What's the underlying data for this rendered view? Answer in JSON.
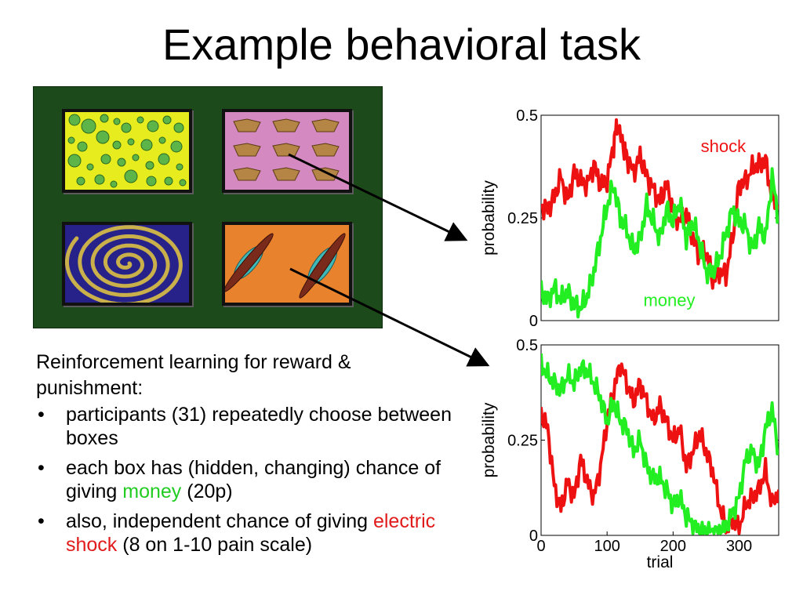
{
  "slide": {
    "title": "Example behavioral task"
  },
  "text": {
    "intro": "Reinforcement learning for reward & punishment:",
    "bullets": [
      {
        "pre": "participants (31) repeatedly choose between boxes",
        "mid": "",
        "mid_color": "",
        "post": ""
      },
      {
        "pre": "each box has (hidden, changing) chance of giving ",
        "mid": "money",
        "mid_color": "green",
        "post": " (20p)"
      },
      {
        "pre": "also, independent chance of giving ",
        "mid": "electric shock",
        "mid_color": "red",
        "post": " (8 on 1-10 pain scale)"
      }
    ],
    "bullet_glyph": "•"
  },
  "task_boxes": [
    {
      "pattern": "circles",
      "background": "#e7ec1f"
    },
    {
      "pattern": "pentagons",
      "background": "#d48ac0"
    },
    {
      "pattern": "spiral",
      "background": "#27228a"
    },
    {
      "pattern": "ellipses",
      "background": "#e8822c"
    }
  ],
  "colors": {
    "shock": "#ee1111",
    "money": "#22ee22",
    "panel": "#1d4a1a"
  },
  "chart_data": [
    {
      "type": "line",
      "xlim": [
        0,
        360
      ],
      "ylim": [
        0,
        0.5
      ],
      "ylabel": "probability",
      "xlabel": "",
      "yticks": [
        0,
        0.25,
        0.5
      ],
      "ytick_labels": [
        "0",
        "0.25",
        "0.5"
      ],
      "xticks": [],
      "annotations": [
        {
          "text": "shock",
          "color": "#ee1111",
          "x": 242,
          "y": 0.41
        },
        {
          "text": "money",
          "color": "#22ee22",
          "x": 155,
          "y": 0.035
        }
      ],
      "series": [
        {
          "color": "#ee1111",
          "x": [
            0,
            10,
            20,
            30,
            40,
            50,
            60,
            70,
            80,
            90,
            100,
            110,
            115,
            125,
            130,
            140,
            150,
            160,
            170,
            180,
            190,
            200,
            210,
            220,
            230,
            240,
            250,
            260,
            270,
            280,
            290,
            300,
            310,
            320,
            330,
            340,
            350,
            360
          ],
          "y": [
            0.28,
            0.27,
            0.3,
            0.35,
            0.29,
            0.36,
            0.34,
            0.33,
            0.38,
            0.33,
            0.34,
            0.43,
            0.48,
            0.42,
            0.4,
            0.36,
            0.4,
            0.35,
            0.32,
            0.29,
            0.33,
            0.27,
            0.24,
            0.26,
            0.2,
            0.16,
            0.17,
            0.1,
            0.12,
            0.11,
            0.2,
            0.33,
            0.34,
            0.37,
            0.38,
            0.39,
            0.3,
            0.27
          ]
        },
        {
          "color": "#22ee22",
          "x": [
            0,
            10,
            20,
            30,
            40,
            50,
            60,
            70,
            80,
            90,
            100,
            110,
            120,
            130,
            140,
            150,
            160,
            170,
            180,
            190,
            200,
            210,
            220,
            230,
            240,
            250,
            260,
            270,
            280,
            290,
            300,
            310,
            320,
            330,
            340,
            350,
            360
          ],
          "y": [
            0.07,
            0.05,
            0.08,
            0.05,
            0.07,
            0.04,
            0.03,
            0.06,
            0.12,
            0.2,
            0.28,
            0.33,
            0.25,
            0.22,
            0.17,
            0.2,
            0.28,
            0.24,
            0.2,
            0.27,
            0.24,
            0.29,
            0.2,
            0.24,
            0.19,
            0.12,
            0.12,
            0.15,
            0.21,
            0.27,
            0.24,
            0.23,
            0.17,
            0.23,
            0.2,
            0.35,
            0.25
          ]
        }
      ]
    },
    {
      "type": "line",
      "xlim": [
        0,
        360
      ],
      "ylim": [
        0,
        0.5
      ],
      "ylabel": "probability",
      "xlabel": "trial",
      "yticks": [
        0,
        0.25,
        0.5
      ],
      "ytick_labels": [
        "0",
        "0.25",
        "0.5"
      ],
      "xticks": [
        0,
        100,
        200,
        300
      ],
      "xtick_labels": [
        "0",
        "100",
        "200",
        "300"
      ],
      "annotations": [],
      "series": [
        {
          "color": "#ee1111",
          "x": [
            0,
            10,
            20,
            30,
            40,
            50,
            60,
            70,
            80,
            90,
            100,
            110,
            120,
            130,
            140,
            150,
            160,
            170,
            180,
            190,
            200,
            210,
            220,
            230,
            240,
            250,
            260,
            270,
            280,
            290,
            300,
            310,
            320,
            330,
            340,
            350,
            360
          ],
          "y": [
            0.32,
            0.28,
            0.13,
            0.07,
            0.14,
            0.1,
            0.2,
            0.14,
            0.1,
            0.18,
            0.3,
            0.38,
            0.45,
            0.4,
            0.35,
            0.4,
            0.35,
            0.3,
            0.34,
            0.3,
            0.25,
            0.28,
            0.18,
            0.22,
            0.27,
            0.22,
            0.17,
            0.08,
            0.02,
            0.04,
            0.02,
            0.08,
            0.1,
            0.12,
            0.17,
            0.08,
            0.12
          ]
        },
        {
          "color": "#22ee22",
          "x": [
            0,
            10,
            20,
            30,
            40,
            50,
            60,
            70,
            80,
            90,
            100,
            110,
            120,
            130,
            140,
            150,
            160,
            170,
            180,
            190,
            200,
            210,
            220,
            230,
            240,
            250,
            260,
            270,
            280,
            290,
            300,
            310,
            320,
            330,
            340,
            350,
            360
          ],
          "y": [
            0.45,
            0.42,
            0.4,
            0.38,
            0.42,
            0.4,
            0.44,
            0.43,
            0.4,
            0.36,
            0.3,
            0.35,
            0.3,
            0.28,
            0.22,
            0.25,
            0.18,
            0.15,
            0.15,
            0.12,
            0.08,
            0.1,
            0.05,
            0.03,
            0.01,
            0.01,
            0.01,
            0.01,
            0.02,
            0.06,
            0.1,
            0.2,
            0.22,
            0.18,
            0.28,
            0.33,
            0.22
          ]
        }
      ]
    }
  ]
}
